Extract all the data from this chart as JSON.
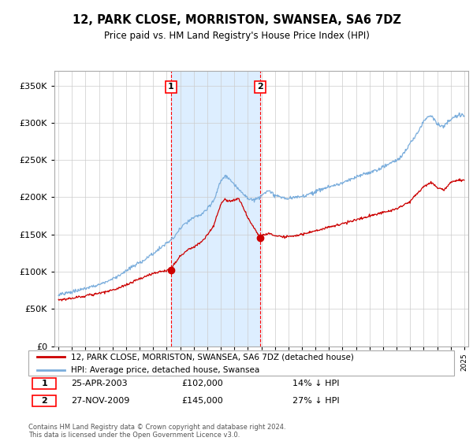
{
  "title": "12, PARK CLOSE, MORRISTON, SWANSEA, SA6 7DZ",
  "subtitle": "Price paid vs. HM Land Registry's House Price Index (HPI)",
  "legend_line1": "12, PARK CLOSE, MORRISTON, SWANSEA, SA6 7DZ (detached house)",
  "legend_line2": "HPI: Average price, detached house, Swansea",
  "sale1_date": "25-APR-2003",
  "sale1_price": 102000,
  "sale1_label": "14% ↓ HPI",
  "sale2_date": "27-NOV-2009",
  "sale2_price": 145000,
  "sale2_label": "27% ↓ HPI",
  "footer": "Contains HM Land Registry data © Crown copyright and database right 2024.\nThis data is licensed under the Open Government Licence v3.0.",
  "sale1_x": 2003.32,
  "sale2_x": 2009.91,
  "hpi_color": "#7aaddc",
  "price_color": "#cc0000",
  "shade_color": "#ddeeff",
  "marker_color": "#cc0000",
  "grid_color": "#cccccc",
  "background_color": "#ffffff",
  "ylim": [
    0,
    370000
  ],
  "xlim": [
    1994.7,
    2025.3
  ]
}
